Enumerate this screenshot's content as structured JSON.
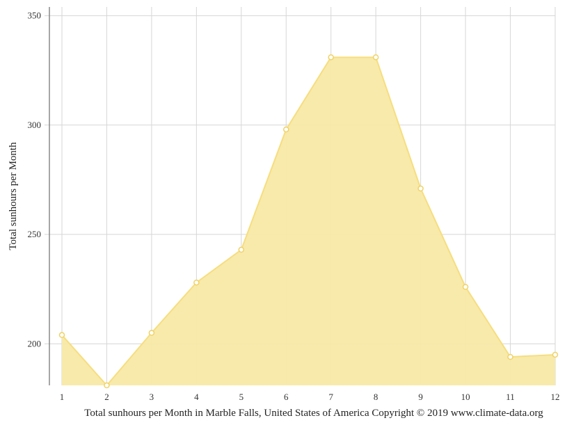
{
  "chart_data": {
    "type": "area",
    "title": "",
    "xlabel": "",
    "ylabel": "Total sunhours per Month",
    "caption": "Total sunhours per Month in Marble Falls, United States of America Copyright © 2019 www.climate-data.org",
    "x": [
      1,
      2,
      3,
      4,
      5,
      6,
      7,
      8,
      9,
      10,
      11,
      12
    ],
    "values": [
      204,
      181,
      205,
      228,
      243,
      298,
      331,
      331,
      271,
      226,
      194,
      195
    ],
    "yticks": [
      200,
      250,
      300,
      350
    ],
    "ylim": [
      181,
      354
    ],
    "grid": true,
    "legend": "none",
    "colors": {
      "fill": "#f8e9a6",
      "line": "#f6de7e",
      "marker_stroke": "#f0d264",
      "grid": "#d6d6d6",
      "axis": "#888888"
    }
  }
}
